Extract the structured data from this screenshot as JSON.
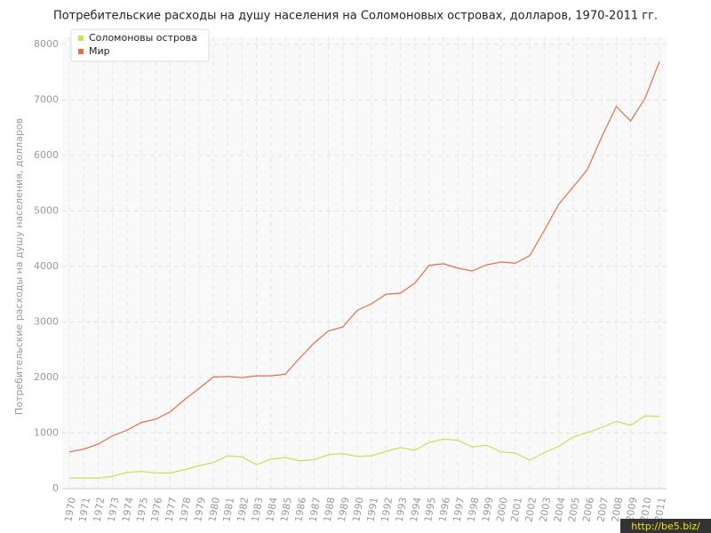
{
  "chart_data": {
    "type": "line",
    "title": "Потребительские расходы на душу населения на Соломоновых островах, долларов, 1970-2011 гг.",
    "y_label": "Потребительские расходы на душу населения, долларов",
    "categories": [
      "1970",
      "1971",
      "1972",
      "1973",
      "1974",
      "1975",
      "1976",
      "1977",
      "1978",
      "1979",
      "1980",
      "1981",
      "1982",
      "1983",
      "1984",
      "1985",
      "1986",
      "1987",
      "1988",
      "1989",
      "1990",
      "1991",
      "1992",
      "1993",
      "1994",
      "1995",
      "1996",
      "1997",
      "1998",
      "1999",
      "2000",
      "2001",
      "2002",
      "2003",
      "2004",
      "2005",
      "2006",
      "2007",
      "2008",
      "2009",
      "2010",
      "2011"
    ],
    "series": [
      {
        "name": "Соломоновы острова",
        "color": "#c8e05a",
        "values": [
          190,
          190,
          190,
          220,
          290,
          310,
          280,
          280,
          340,
          410,
          470,
          590,
          570,
          430,
          530,
          560,
          500,
          520,
          610,
          630,
          580,
          590,
          670,
          740,
          690,
          830,
          890,
          870,
          750,
          780,
          660,
          640,
          510,
          650,
          760,
          930,
          1010,
          1100,
          1210,
          1140,
          1310,
          1300
        ]
      },
      {
        "name": "Мир",
        "color": "#e3704a",
        "values": [
          660,
          710,
          800,
          950,
          1050,
          1190,
          1250,
          1380,
          1600,
          1800,
          2010,
          2020,
          2000,
          2030,
          2030,
          2060,
          2350,
          2620,
          2840,
          2910,
          3210,
          3330,
          3500,
          3520,
          3700,
          4020,
          4050,
          3970,
          3920,
          4030,
          4080,
          4060,
          4200,
          4650,
          5120,
          5430,
          5750,
          6340,
          6880,
          6620,
          7030,
          7690
        ]
      }
    ],
    "ylim": [
      0,
      8000
    ],
    "yticks": [
      0,
      1000,
      2000,
      3000,
      4000,
      5000,
      6000,
      7000,
      8000
    ],
    "grid": true,
    "legend": "top-left",
    "watermark": "http://be5.biz/"
  }
}
